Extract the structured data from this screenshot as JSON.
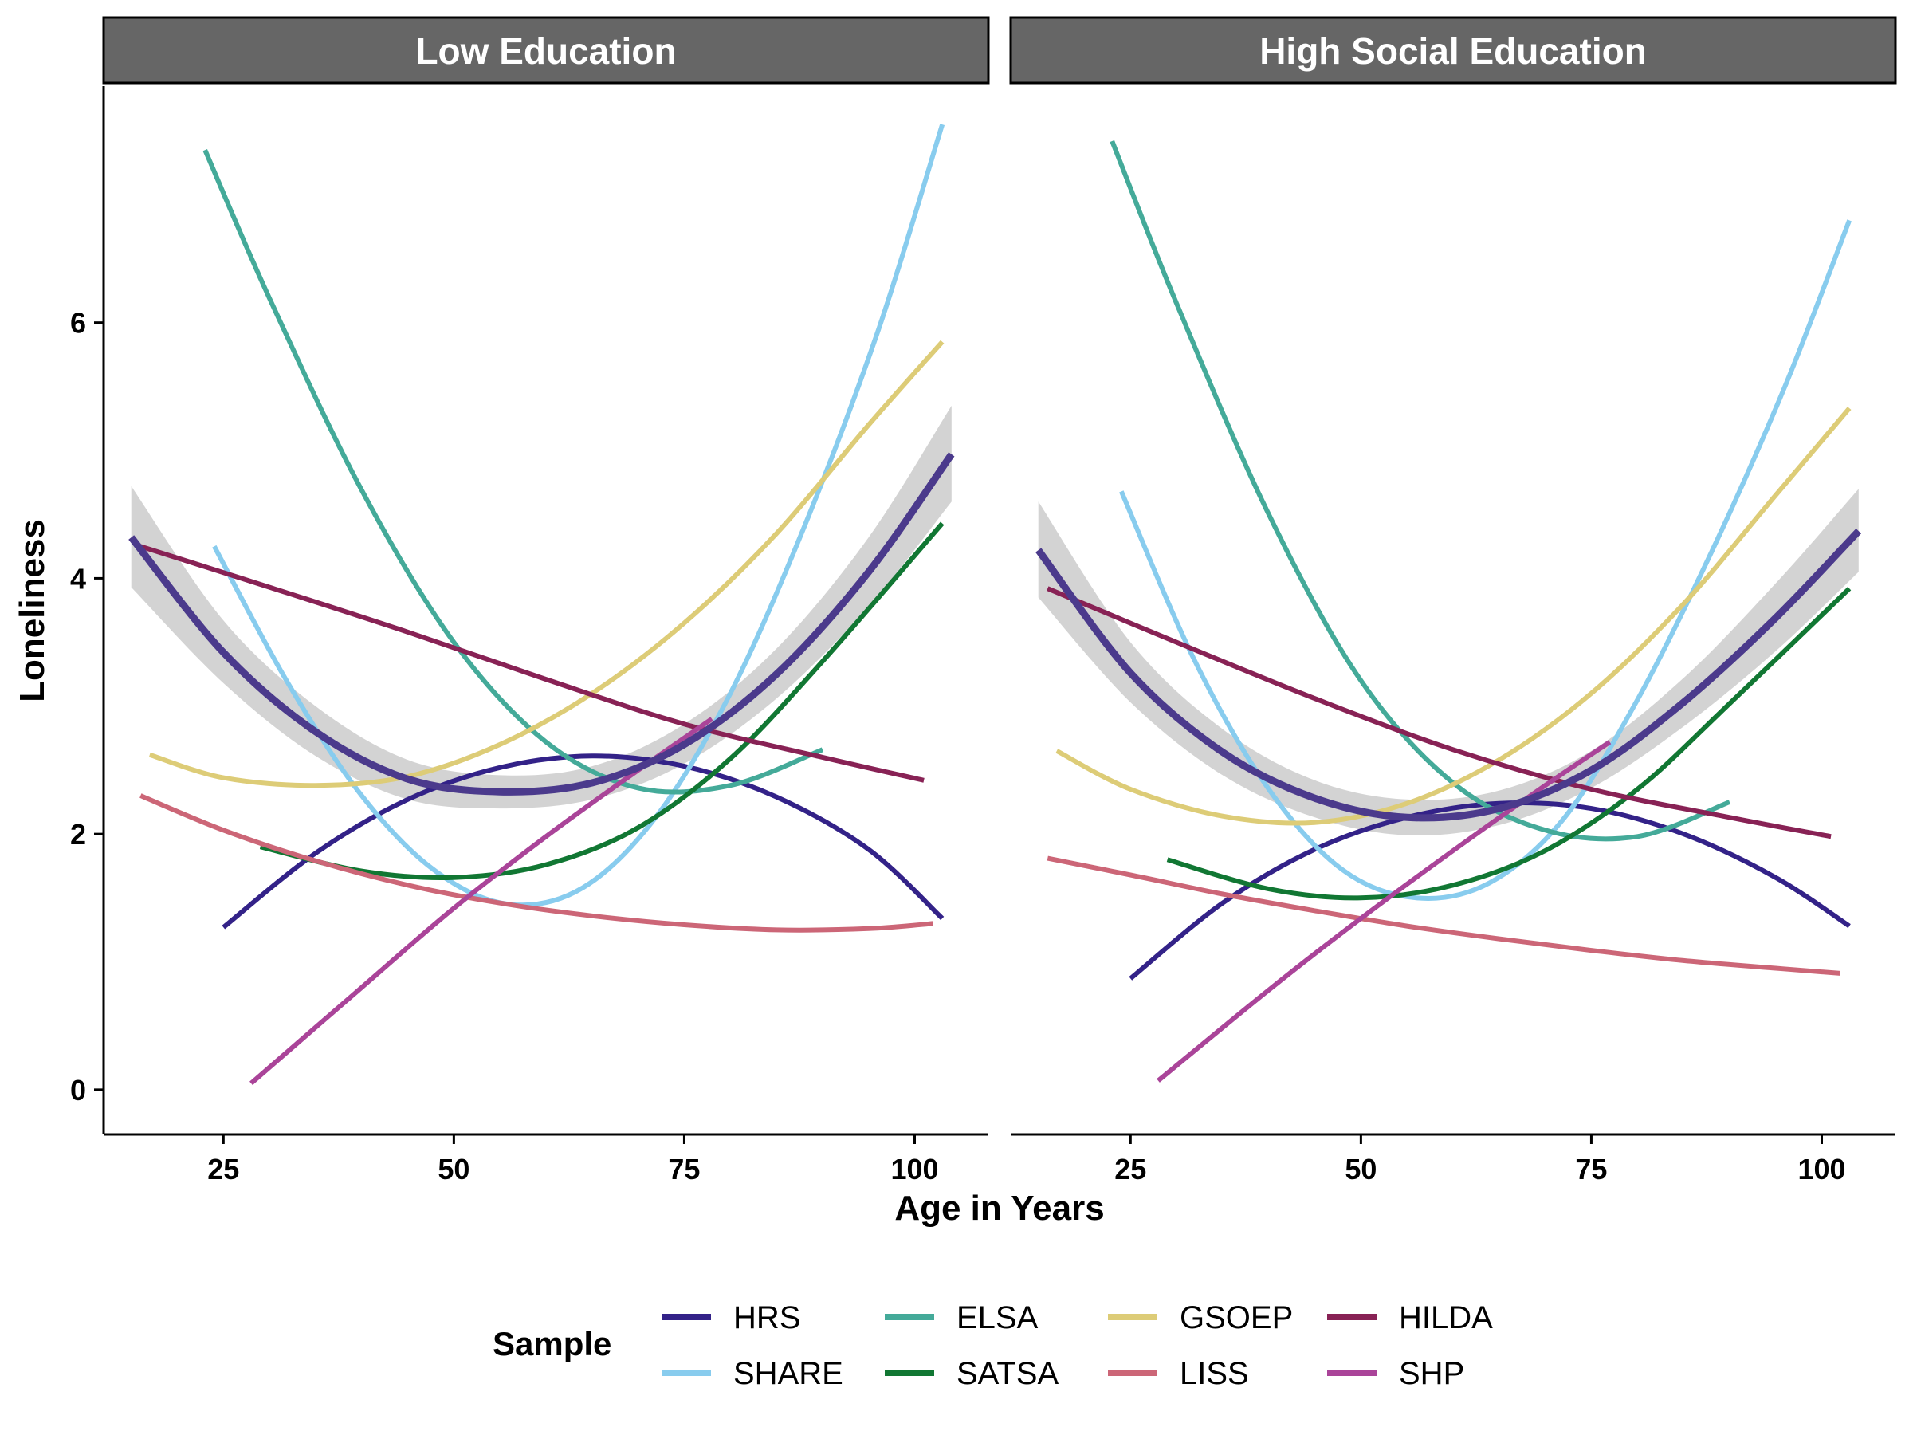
{
  "chart_data": {
    "type": "line",
    "xlabel": "Age in Years",
    "ylabel": "Loneliness",
    "xlim": [
      12,
      108
    ],
    "ylim": [
      -0.35,
      7.85
    ],
    "x_ticks": [
      25,
      50,
      75,
      100
    ],
    "x_tick_labels": [
      "25",
      "50",
      "75",
      "100"
    ],
    "y_ticks": [
      0,
      2,
      4,
      6
    ],
    "y_tick_labels": [
      "0",
      "2",
      "4",
      "6"
    ],
    "grid": false,
    "legend": {
      "title": "Sample",
      "position": "bottom",
      "entries": [
        "HRS",
        "SHARE",
        "ELSA",
        "SATSA",
        "GSOEP",
        "LISS",
        "HILDA",
        "SHP"
      ]
    },
    "colors": {
      "HRS": "#332288",
      "SHARE": "#88CCEE",
      "ELSA": "#44AA99",
      "SATSA": "#117733",
      "GSOEP": "#DDCC77",
      "LISS": "#CC6677",
      "HILDA": "#882255",
      "SHP": "#AA4499",
      "pooled": "#4B3A8C",
      "ribbon": "#D3D3D3",
      "strip": "#666666"
    },
    "panels": [
      {
        "title": "Low Education",
        "series": [
          {
            "name": "HRS",
            "x": [
              25,
              35,
              45,
              55,
              65,
              75,
              85,
              95,
              103
            ],
            "y": [
              1.27,
              1.85,
              2.27,
              2.52,
              2.61,
              2.53,
              2.29,
              1.88,
              1.34
            ]
          },
          {
            "name": "SHARE",
            "x": [
              24,
              32,
              40,
              48,
              56,
              64,
              72,
              80,
              88,
              96,
              103
            ],
            "y": [
              4.25,
              3.18,
              2.3,
              1.71,
              1.45,
              1.58,
              2.14,
              3.1,
              4.4,
              5.93,
              7.55
            ]
          },
          {
            "name": "ELSA",
            "x": [
              23,
              30,
              40,
              50,
              60,
              70,
              80,
              90
            ],
            "y": [
              7.35,
              6.19,
              4.69,
              3.5,
              2.72,
              2.36,
              2.38,
              2.66
            ]
          },
          {
            "name": "SATSA",
            "x": [
              29,
              40,
              50,
              60,
              70,
              80,
              90,
              103
            ],
            "y": [
              1.9,
              1.71,
              1.66,
              1.76,
              2.05,
              2.59,
              3.35,
              4.43
            ]
          },
          {
            "name": "GSOEP",
            "x": [
              17,
              25,
              35,
              45,
              55,
              65,
              75,
              85,
              95,
              103
            ],
            "y": [
              2.62,
              2.44,
              2.38,
              2.45,
              2.7,
              3.1,
              3.65,
              4.35,
              5.2,
              5.85
            ]
          },
          {
            "name": "LISS",
            "x": [
              16,
              25,
              35,
              45,
              55,
              65,
              75,
              85,
              95,
              102
            ],
            "y": [
              2.3,
              2.03,
              1.79,
              1.6,
              1.46,
              1.36,
              1.29,
              1.25,
              1.26,
              1.3
            ]
          },
          {
            "name": "HILDA",
            "x": [
              16,
              30,
              45,
              60,
              75,
              90,
              101
            ],
            "y": [
              4.25,
              3.93,
              3.58,
              3.21,
              2.86,
              2.6,
              2.42
            ]
          },
          {
            "name": "SHP",
            "x": [
              28,
              40,
              50,
              60,
              70,
              78
            ],
            "y": [
              0.05,
              0.8,
              1.42,
              1.98,
              2.5,
              2.9
            ]
          }
        ],
        "pooled": {
          "x": [
            15,
            25,
            35,
            45,
            55,
            65,
            75,
            85,
            95,
            104
          ],
          "y": [
            4.32,
            3.42,
            2.8,
            2.43,
            2.33,
            2.4,
            2.7,
            3.25,
            4.05,
            4.97
          ],
          "lower": [
            3.93,
            3.18,
            2.61,
            2.27,
            2.2,
            2.27,
            2.55,
            3.06,
            3.78,
            4.6
          ],
          "upper": [
            4.72,
            3.67,
            3.0,
            2.58,
            2.46,
            2.53,
            2.86,
            3.45,
            4.32,
            5.35
          ]
        }
      },
      {
        "title": "High Social Education",
        "series": [
          {
            "name": "HRS",
            "x": [
              25,
              35,
              45,
              55,
              65,
              75,
              85,
              95,
              103
            ],
            "y": [
              0.87,
              1.46,
              1.88,
              2.13,
              2.24,
              2.2,
              2.0,
              1.66,
              1.28
            ]
          },
          {
            "name": "SHARE",
            "x": [
              24,
              32,
              40,
              48,
              56,
              64,
              72,
              80,
              88,
              96,
              103
            ],
            "y": [
              4.68,
              3.35,
              2.35,
              1.72,
              1.5,
              1.62,
              2.12,
              3.05,
              4.2,
              5.5,
              6.8
            ]
          },
          {
            "name": "ELSA",
            "x": [
              23,
              30,
              40,
              50,
              60,
              70,
              80,
              90
            ],
            "y": [
              7.42,
              6.15,
              4.5,
              3.2,
              2.4,
              2.03,
              1.98,
              2.25
            ]
          },
          {
            "name": "SATSA",
            "x": [
              29,
              40,
              50,
              60,
              70,
              80,
              90,
              103
            ],
            "y": [
              1.8,
              1.57,
              1.5,
              1.6,
              1.87,
              2.35,
              3.02,
              3.92
            ]
          },
          {
            "name": "GSOEP",
            "x": [
              17,
              25,
              35,
              45,
              55,
              65,
              75,
              85,
              95,
              103
            ],
            "y": [
              2.65,
              2.35,
              2.14,
              2.09,
              2.24,
              2.58,
              3.1,
              3.8,
              4.65,
              5.33
            ]
          },
          {
            "name": "LISS",
            "x": [
              16,
              25,
              35,
              45,
              55,
              65,
              75,
              85,
              95,
              102
            ],
            "y": [
              1.81,
              1.68,
              1.53,
              1.4,
              1.28,
              1.18,
              1.09,
              1.01,
              0.95,
              0.91
            ]
          },
          {
            "name": "HILDA",
            "x": [
              16,
              30,
              45,
              60,
              75,
              90,
              101
            ],
            "y": [
              3.92,
              3.5,
              3.06,
              2.66,
              2.35,
              2.13,
              1.98
            ]
          },
          {
            "name": "SHP",
            "x": [
              28,
              40,
              50,
              60,
              70,
              77
            ],
            "y": [
              0.07,
              0.78,
              1.34,
              1.87,
              2.38,
              2.72
            ]
          }
        ],
        "pooled": {
          "x": [
            15,
            25,
            35,
            45,
            55,
            65,
            75,
            85,
            95,
            104
          ],
          "y": [
            4.22,
            3.26,
            2.64,
            2.28,
            2.13,
            2.2,
            2.5,
            3.03,
            3.69,
            4.37
          ],
          "lower": [
            3.85,
            3.03,
            2.46,
            2.13,
            1.99,
            2.07,
            2.36,
            2.84,
            3.43,
            4.05
          ],
          "upper": [
            4.6,
            3.5,
            2.82,
            2.42,
            2.27,
            2.34,
            2.65,
            3.22,
            3.96,
            4.7
          ]
        }
      }
    ]
  }
}
